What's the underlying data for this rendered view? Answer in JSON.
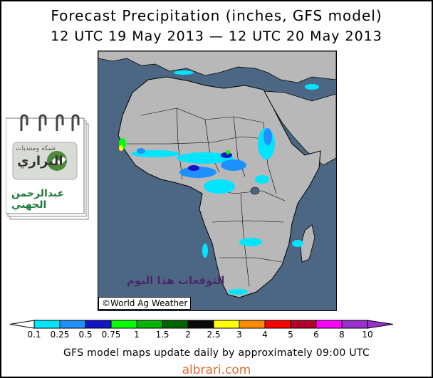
{
  "header": {
    "title": "Forecast Precipitation (inches, GFS model)",
    "subtitle": "12 UTC 19 May 2013 — 12 UTC 20 May 2013"
  },
  "map": {
    "credit": "©World Ag Weather",
    "overlay_text": "التوقعات هذا اليوم",
    "colors": {
      "ocean": "#4b6784",
      "land": "#b8b8b8",
      "borders": "#000000"
    }
  },
  "logo": {
    "line1": "شبكة ومنتديات",
    "line2": "البراري",
    "name": "عبدالرحمن الجهني"
  },
  "legend": {
    "levels": [
      {
        "label": "0.1",
        "color": "#ffffff"
      },
      {
        "label": "0.25",
        "color": "#00e5ff"
      },
      {
        "label": "0.5",
        "color": "#1e90ff"
      },
      {
        "label": "0.75",
        "color": "#1414c8"
      },
      {
        "label": "1",
        "color": "#00ff00"
      },
      {
        "label": "1.5",
        "color": "#00b400"
      },
      {
        "label": "2",
        "color": "#006400"
      },
      {
        "label": "2.5",
        "color": "#0a0a0a"
      },
      {
        "label": "3",
        "color": "#ffff00"
      },
      {
        "label": "4",
        "color": "#ff8c00"
      },
      {
        "label": "5",
        "color": "#ff0000"
      },
      {
        "label": "6",
        "color": "#b40028"
      },
      {
        "label": "8",
        "color": "#ff00ff"
      },
      {
        "label": "10",
        "color": "#9932cc"
      }
    ]
  },
  "footer": "GFS model maps update daily by approximately 09:00 UTC",
  "watermark": "albrari.com"
}
